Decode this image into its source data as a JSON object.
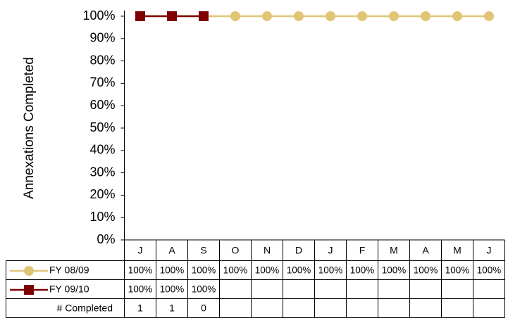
{
  "chart_data": {
    "type": "line",
    "y_label": "Annexations Completed",
    "categories": [
      "J",
      "A",
      "S",
      "O",
      "N",
      "D",
      "J",
      "F",
      "M",
      "A",
      "M",
      "J"
    ],
    "ylim": [
      0,
      100
    ],
    "yticks": [
      {
        "value": 0,
        "label": "0%"
      },
      {
        "value": 10,
        "label": "10%"
      },
      {
        "value": 20,
        "label": "20%"
      },
      {
        "value": 30,
        "label": "30%"
      },
      {
        "value": 40,
        "label": "40%"
      },
      {
        "value": 50,
        "label": "50%"
      },
      {
        "value": 60,
        "label": "60%"
      },
      {
        "value": 70,
        "label": "70%"
      },
      {
        "value": 80,
        "label": "80%"
      },
      {
        "value": 90,
        "label": "90%"
      },
      {
        "value": 100,
        "label": "100%"
      }
    ],
    "grid": false,
    "series": [
      {
        "name": "FY 08/09",
        "color": "#e2c477",
        "marker": "circle",
        "values": [
          100,
          100,
          100,
          100,
          100,
          100,
          100,
          100,
          100,
          100,
          100,
          100
        ],
        "value_labels": [
          "100%",
          "100%",
          "100%",
          "100%",
          "100%",
          "100%",
          "100%",
          "100%",
          "100%",
          "100%",
          "100%",
          "100%"
        ]
      },
      {
        "name": "FY 09/10",
        "color": "#7f0000",
        "marker": "square",
        "values": [
          100,
          100,
          100,
          null,
          null,
          null,
          null,
          null,
          null,
          null,
          null,
          null
        ],
        "value_labels": [
          "100%",
          "100%",
          "100%",
          null,
          null,
          null,
          null,
          null,
          null,
          null,
          null,
          null
        ]
      }
    ],
    "completed": {
      "name": "# Completed",
      "values": [
        1,
        1,
        0,
        null,
        null,
        null,
        null,
        null,
        null,
        null,
        null,
        null
      ]
    }
  }
}
